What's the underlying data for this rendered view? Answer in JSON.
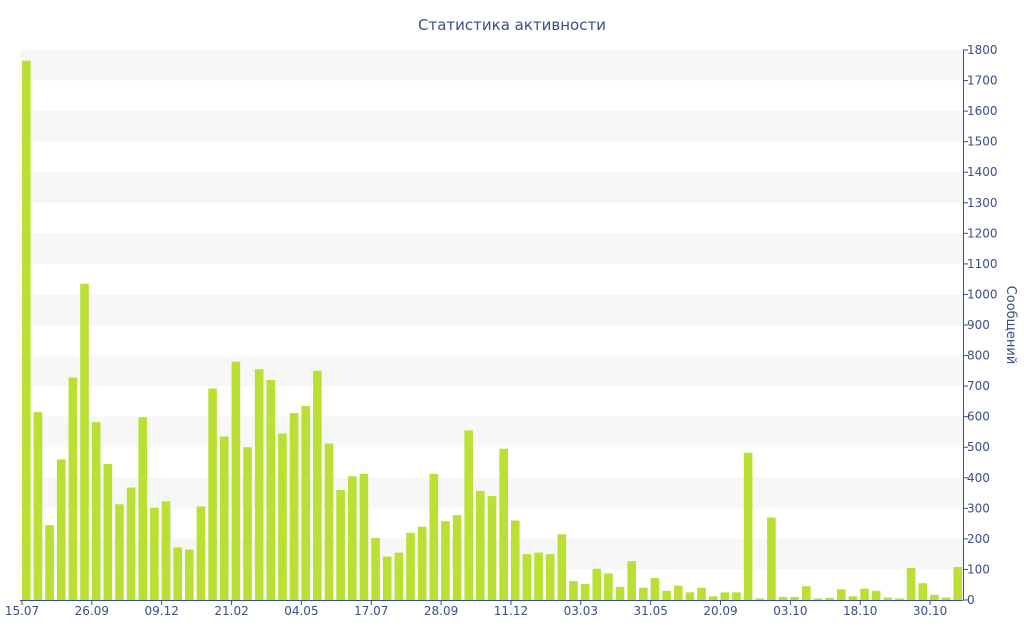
{
  "chart_data": {
    "type": "bar",
    "title": "Статистика активности",
    "ylabel": "Сообщений",
    "xlabel": "",
    "ylim": [
      0,
      1800
    ],
    "y_ticks": [
      0,
      100,
      200,
      300,
      400,
      500,
      600,
      700,
      800,
      900,
      1000,
      1100,
      1200,
      1300,
      1400,
      1500,
      1600,
      1700,
      1800
    ],
    "y_axis_side": "right",
    "grid": "alternating horizontal bands",
    "x_tick_labels": [
      {
        "index": 0,
        "label": "15.07"
      },
      {
        "index": 6,
        "label": "26.09"
      },
      {
        "index": 12,
        "label": "09.12"
      },
      {
        "index": 18,
        "label": "21.02"
      },
      {
        "index": 24,
        "label": "04.05"
      },
      {
        "index": 30,
        "label": "17.07"
      },
      {
        "index": 36,
        "label": "28.09"
      },
      {
        "index": 42,
        "label": "11.12"
      },
      {
        "index": 48,
        "label": "03.03"
      },
      {
        "index": 54,
        "label": "31.05"
      },
      {
        "index": 60,
        "label": "20.09"
      },
      {
        "index": 66,
        "label": "03.10"
      },
      {
        "index": 72,
        "label": "18.10"
      },
      {
        "index": 78,
        "label": "30.10"
      }
    ],
    "values": [
      1765,
      615,
      245,
      460,
      728,
      1035,
      582,
      445,
      313,
      368,
      598,
      302,
      323,
      172,
      165,
      306,
      692,
      535,
      780,
      500,
      755,
      720,
      545,
      612,
      635,
      750,
      512,
      360,
      405,
      413,
      203,
      142,
      155,
      220,
      240,
      413,
      258,
      278,
      555,
      357,
      340,
      495,
      260,
      150,
      155,
      150,
      215,
      62,
      52,
      102,
      87,
      43,
      127,
      40,
      72,
      30,
      47,
      25,
      40,
      12,
      25,
      25,
      482,
      5,
      270,
      10,
      10,
      45,
      5,
      7,
      35,
      12,
      37,
      30,
      8,
      5,
      105,
      55,
      17,
      8,
      108
    ],
    "colors": {
      "bar": "#b9e033",
      "band": "#f7f7f7",
      "axis": "#3b4f86",
      "text": "#3b4f86"
    }
  }
}
